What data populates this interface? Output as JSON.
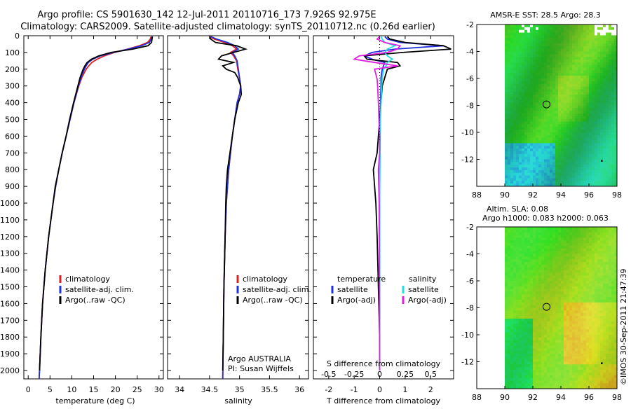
{
  "title_line1": "Argo profile: CS 5901630_142 12-Jul-2011 20110716_173 7.926S 92.975E",
  "title_line2": "Climatology: CARS2009. Satellite-adjusted climatology: synTS_20110712.nc (0.26d earlier)",
  "depth_ticks": [
    "0",
    "100",
    "200",
    "300",
    "400",
    "500",
    "600",
    "700",
    "800",
    "900",
    "1000",
    "1100",
    "1200",
    "1300",
    "1400",
    "1500",
    "1600",
    "1700",
    "1800",
    "1900",
    "2000"
  ],
  "stamp": "©IMOS 30-Sep-2011 21:47:39",
  "colors": {
    "climatology": "#e02020",
    "satellite": "#2030e0",
    "argo": "#000000",
    "satellite_s": "#20e0e0",
    "argo_s": "#e020e0"
  },
  "chart_data": [
    {
      "id": "temperature",
      "type": "line",
      "xlabel": "temperature (deg C)",
      "xlim": [
        -1,
        31
      ],
      "ylim": [
        2050,
        0
      ],
      "xticks": [
        0,
        5,
        10,
        15,
        20,
        25,
        30
      ],
      "xtick_labels": [
        "0",
        "5",
        "10",
        "15",
        "20",
        "25",
        "30"
      ],
      "legend": [
        "climatology",
        "satellite-adj. clim.",
        "Argo(..raw -QC)"
      ],
      "series": [
        {
          "name": "climatology",
          "color": "#e02020",
          "depth": [
            5,
            20,
            40,
            60,
            80,
            100,
            120,
            140,
            160,
            180,
            200,
            250,
            300,
            400,
            500,
            600,
            700,
            800,
            900,
            1000,
            1200,
            1400,
            1600,
            1800,
            2000,
            2050
          ],
          "values": [
            28.2,
            28.0,
            27.4,
            25.5,
            22.8,
            19.8,
            17.5,
            15.8,
            14.6,
            13.9,
            13.3,
            12.3,
            11.6,
            10.5,
            9.6,
            8.7,
            7.8,
            7.0,
            6.3,
            5.7,
            4.7,
            3.9,
            3.3,
            2.9,
            2.6,
            2.5
          ]
        },
        {
          "name": "satellite-adj. clim.",
          "color": "#2030e0",
          "depth": [
            5,
            20,
            40,
            60,
            80,
            100,
            120,
            140,
            160,
            180,
            200,
            250,
            300,
            400,
            500,
            600,
            700,
            800,
            900,
            1000,
            1200,
            1400,
            1600,
            1800,
            2000,
            2050
          ],
          "values": [
            28.4,
            28.2,
            27.8,
            26.0,
            23.0,
            19.5,
            16.6,
            14.8,
            13.8,
            13.3,
            12.9,
            12.1,
            11.5,
            10.5,
            9.6,
            8.7,
            7.8,
            7.0,
            6.3,
            5.7,
            4.7,
            3.9,
            3.3,
            2.9,
            2.6,
            2.5
          ]
        },
        {
          "name": "Argo(..raw -QC)",
          "color": "#000000",
          "depth": [
            5,
            20,
            40,
            60,
            80,
            100,
            120,
            140,
            160,
            180,
            200,
            250,
            300,
            400,
            500,
            600,
            700,
            800,
            900,
            1000,
            1200,
            1400,
            1600,
            1800,
            2000
          ],
          "values": [
            28.5,
            28.4,
            28.3,
            27.5,
            24.0,
            19.0,
            16.2,
            14.5,
            13.5,
            13.0,
            12.6,
            11.9,
            11.4,
            10.4,
            9.5,
            8.7,
            7.8,
            7.0,
            6.2,
            5.7,
            4.7,
            3.9,
            3.3,
            2.9,
            2.6
          ]
        }
      ]
    },
    {
      "id": "salinity",
      "type": "line",
      "xlabel": "salinity",
      "xlim": [
        33.8,
        36.15
      ],
      "ylim": [
        2050,
        0
      ],
      "xticks": [
        34,
        34.5,
        35,
        35.5,
        36
      ],
      "xtick_labels": [
        "34",
        "34.5",
        "35",
        "35.5",
        "36"
      ],
      "legend": [
        "climatology",
        "satellite-adj. clim.",
        "Argo(..raw -QC)"
      ],
      "annotation": [
        "Argo AUSTRALIA",
        "PI: Susan Wijffels"
      ],
      "series": [
        {
          "name": "climatology",
          "color": "#e02020",
          "depth": [
            5,
            20,
            40,
            60,
            80,
            100,
            120,
            150,
            200,
            250,
            300,
            350,
            400,
            500,
            600,
            800,
            1000,
            1200,
            1500,
            1800,
            2050
          ],
          "values": [
            34.5,
            34.58,
            34.75,
            34.88,
            34.95,
            34.85,
            34.9,
            34.95,
            34.97,
            35.0,
            35.02,
            35.0,
            34.96,
            34.92,
            34.88,
            34.82,
            34.78,
            34.76,
            34.74,
            34.73,
            34.72
          ]
        },
        {
          "name": "satellite-adj. clim.",
          "color": "#2030e0",
          "depth": [
            5,
            20,
            40,
            60,
            80,
            100,
            120,
            150,
            200,
            250,
            300,
            350,
            400,
            500,
            600,
            800,
            1000,
            1200,
            1500,
            1800,
            2050
          ],
          "values": [
            34.52,
            34.62,
            34.8,
            34.92,
            34.98,
            34.88,
            34.92,
            34.96,
            34.98,
            35.0,
            35.02,
            35.0,
            34.96,
            34.92,
            34.88,
            34.82,
            34.78,
            34.76,
            34.74,
            34.73,
            34.72
          ]
        },
        {
          "name": "Argo(..raw -QC)",
          "color": "#000000",
          "depth": [
            5,
            20,
            40,
            60,
            80,
            100,
            120,
            140,
            160,
            180,
            200,
            220,
            250,
            300,
            350,
            400,
            500,
            600,
            700,
            800,
            900,
            1000,
            1200,
            1500,
            1800,
            2000
          ],
          "values": [
            34.5,
            34.52,
            34.6,
            34.95,
            35.1,
            34.9,
            34.7,
            34.65,
            34.9,
            34.72,
            34.78,
            34.92,
            34.97,
            35.02,
            35.03,
            34.98,
            34.92,
            34.88,
            34.84,
            34.8,
            34.78,
            34.77,
            34.76,
            34.74,
            34.73,
            34.72
          ]
        }
      ]
    },
    {
      "id": "differences",
      "type": "line",
      "xlabel": "T difference from climatology",
      "xlabel_top": "S difference from climatology",
      "xlim": [
        -2.6,
        2.9
      ],
      "ylim": [
        2050,
        0
      ],
      "xticks": [
        -2,
        -1,
        0,
        1,
        2
      ],
      "xtick_labels": [
        "-2",
        "-1",
        "0",
        "1",
        "2"
      ],
      "s_xticks_in_t_units": [
        -2,
        -1,
        0,
        1,
        2
      ],
      "s_xtick_labels": [
        "-0.5",
        "-0.25",
        "0",
        "0.25",
        "0.5"
      ],
      "legend_temperature": {
        "title": "temperature",
        "items": [
          "satellite",
          "Argo(-adj)"
        ]
      },
      "legend_salinity": {
        "title": "salinity",
        "items": [
          "satellite",
          "Argo(-adj)"
        ]
      },
      "series": [
        {
          "name": "T satellite",
          "color": "#2030e0",
          "depth": [
            5,
            20,
            40,
            60,
            80,
            100,
            120,
            140,
            160,
            180,
            200,
            250,
            300,
            400,
            500,
            600,
            800,
            1000,
            1500,
            2000
          ],
          "values": [
            0.2,
            0.3,
            0.8,
            2.5,
            0.6,
            -0.3,
            -0.6,
            -0.3,
            0.2,
            0.15,
            0.1,
            0.05,
            0.05,
            0.03,
            0.02,
            0.01,
            0,
            0,
            0,
            0
          ]
        },
        {
          "name": "T Argo(-adj)",
          "color": "#000000",
          "depth": [
            5,
            20,
            40,
            60,
            80,
            100,
            120,
            140,
            160,
            180,
            200,
            250,
            300,
            400,
            500,
            600,
            700,
            800,
            900,
            1000,
            1200,
            1500,
            1800,
            2000
          ],
          "values": [
            0.3,
            0.4,
            1.0,
            2.5,
            2.8,
            0.9,
            -0.6,
            -0.5,
            0.7,
            0.8,
            0.3,
            0.2,
            0.1,
            0.05,
            0.0,
            -0.05,
            -0.1,
            -0.25,
            -0.2,
            -0.15,
            -0.1,
            -0.05,
            0,
            0
          ]
        },
        {
          "name": "S satellite",
          "color": "#20e0e0",
          "depth": [
            5,
            20,
            40,
            60,
            80,
            100,
            120,
            140,
            160,
            180,
            200,
            250,
            300,
            400,
            500,
            600,
            800,
            1000,
            1500,
            2000
          ],
          "values": [
            0.05,
            0.1,
            0.2,
            0.6,
            0.3,
            0.2,
            0.3,
            0.5,
            0.3,
            0.25,
            0.15,
            0.1,
            0.08,
            0.05,
            0.03,
            0.02,
            0.01,
            0,
            0,
            0
          ]
        },
        {
          "name": "S Argo(-adj)",
          "color": "#e020e0",
          "depth": [
            5,
            20,
            40,
            60,
            80,
            100,
            120,
            140,
            160,
            180,
            200,
            230,
            260,
            300,
            400,
            500,
            600,
            700,
            800,
            1000,
            1500,
            2000
          ],
          "values": [
            0,
            -0.1,
            0.2,
            0.8,
            0.7,
            0.3,
            -0.8,
            -1.0,
            -0.2,
            0.7,
            -0.2,
            -0.15,
            -0.1,
            -0.08,
            -0.05,
            -0.03,
            0,
            0.0,
            -0.05,
            -0.02,
            -0.01,
            0
          ]
        }
      ]
    },
    {
      "id": "sst_map",
      "type": "heatmap",
      "title": "AMSR-E SST: 28.5 Argo: 28.3",
      "xlim": [
        88,
        98
      ],
      "ylim": [
        -14,
        -2
      ],
      "xticks": [
        88,
        90,
        92,
        94,
        96,
        98
      ],
      "yticks": [
        -2,
        -4,
        -6,
        -8,
        -10,
        -12
      ],
      "xtick_labels": [
        "88",
        "90",
        "92",
        "94",
        "96",
        "98"
      ],
      "ytick_labels": [
        "-2",
        "-4",
        "-6",
        "-8",
        "-10",
        "-12"
      ],
      "data_region": {
        "lon": [
          90,
          98
        ],
        "lat": [
          -14,
          -2
        ]
      },
      "argo_position": {
        "lon": 92.975,
        "lat": -7.926
      },
      "marker_points": [
        {
          "lon": 96.9,
          "lat": -12.1
        }
      ]
    },
    {
      "id": "sla_map",
      "type": "heatmap",
      "title_line1": "Altim. SLA: 0.08",
      "title_line2": "Argo h1000: 0.083 h2000: 0.063",
      "xlim": [
        88,
        98
      ],
      "ylim": [
        -14,
        -2
      ],
      "xticks": [
        88,
        90,
        92,
        94,
        96,
        98
      ],
      "yticks": [
        -2,
        -4,
        -6,
        -8,
        -10,
        -12
      ],
      "xtick_labels": [
        "88",
        "90",
        "92",
        "94",
        "96",
        "98"
      ],
      "ytick_labels": [
        "-2",
        "-4",
        "-6",
        "-8",
        "-10",
        "-12"
      ],
      "data_region": {
        "lon": [
          90,
          98
        ],
        "lat": [
          -14,
          -2
        ]
      },
      "argo_position": {
        "lon": 92.975,
        "lat": -7.926
      },
      "marker_points": [
        {
          "lon": 96.9,
          "lat": -12.1
        }
      ]
    }
  ]
}
